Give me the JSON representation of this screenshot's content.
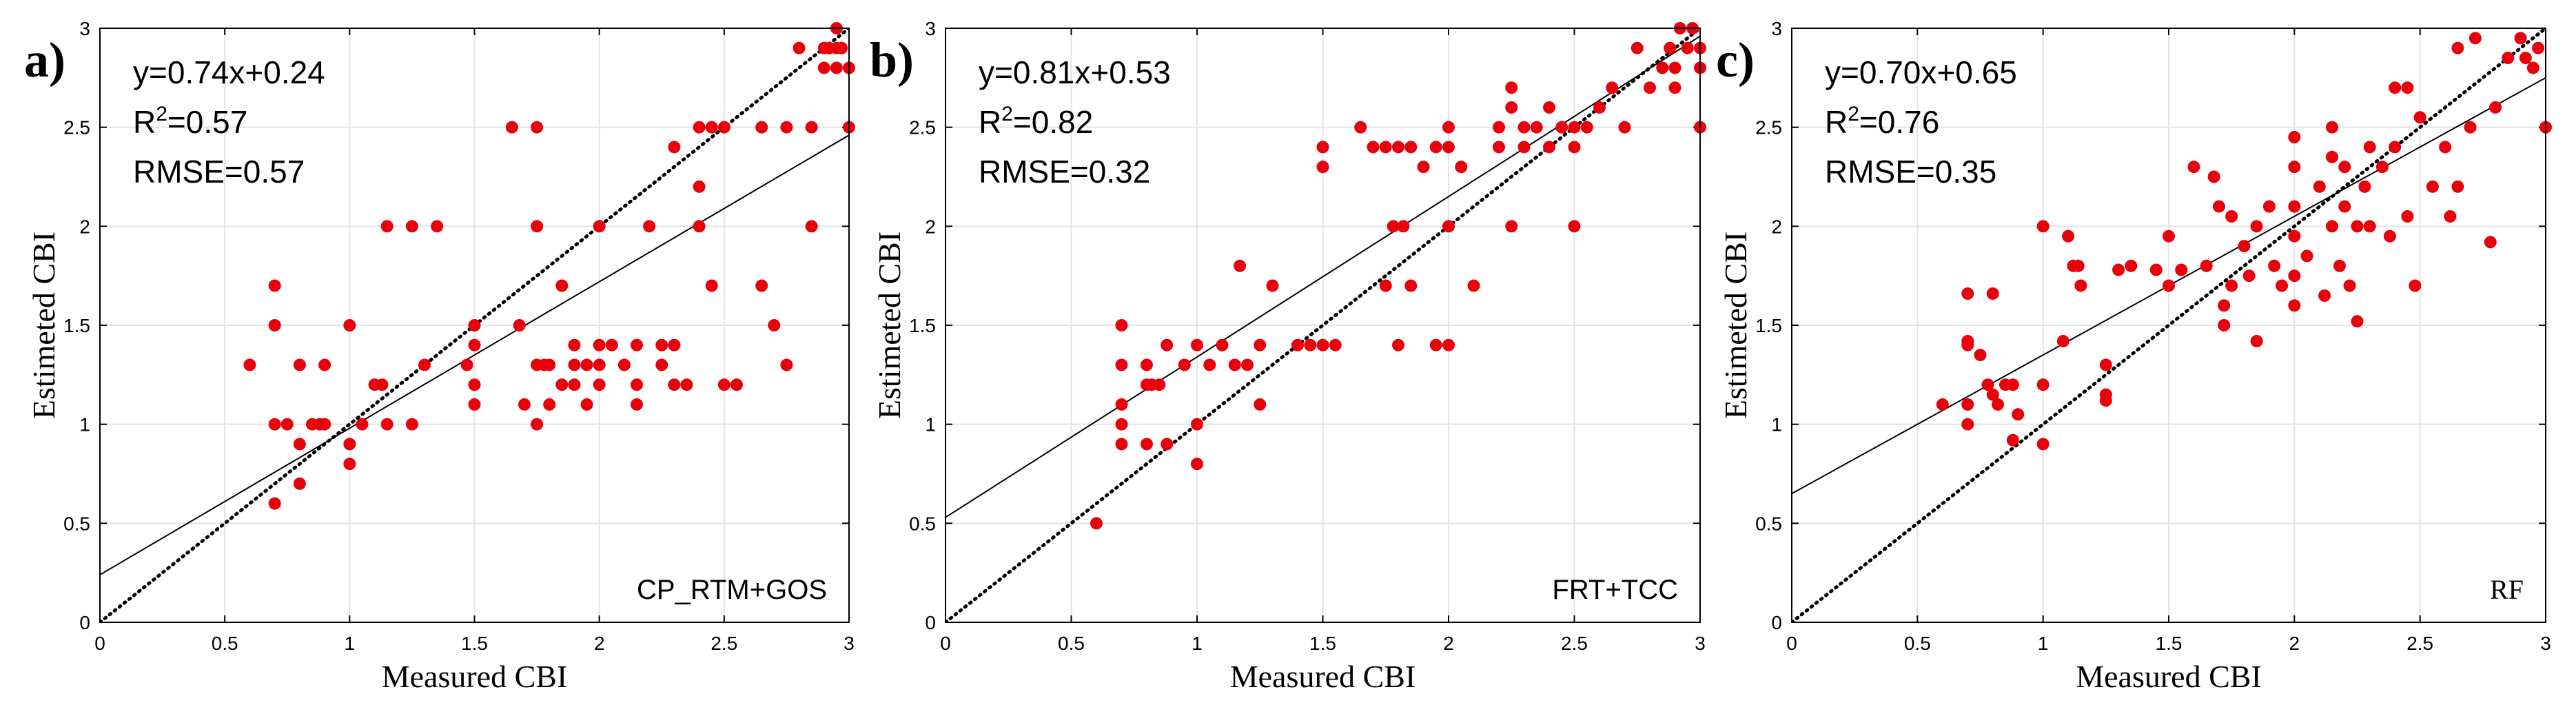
{
  "chart_data": [
    {
      "type": "scatter",
      "panel_label": "a)",
      "xlabel": "Measured CBI",
      "ylabel": "Estimeted CBI",
      "xlim": [
        0,
        3
      ],
      "ylim": [
        0,
        3
      ],
      "xticks": [
        "0",
        "0.5",
        "1",
        "1.5",
        "2",
        "2.5",
        "3"
      ],
      "yticks": [
        "0",
        "0.5",
        "1",
        "1.5",
        "2",
        "2.5",
        "3"
      ],
      "grid": true,
      "equation": "y=0.74x+0.24",
      "r2_text": "R",
      "r2_sup": "2",
      "r2_value": "=0.57",
      "rmse": "RMSE=0.57",
      "method": "CP_RTM+GOS",
      "fit": {
        "slope": 0.74,
        "intercept": 0.24
      },
      "reference_line": "1:1",
      "marker_color": "#e8000b",
      "points": [
        [
          0.6,
          1.3
        ],
        [
          0.7,
          1.7
        ],
        [
          0.7,
          1.5
        ],
        [
          0.7,
          1.0
        ],
        [
          0.7,
          0.6
        ],
        [
          0.75,
          1.0
        ],
        [
          0.8,
          0.9
        ],
        [
          0.8,
          0.7
        ],
        [
          0.8,
          1.3
        ],
        [
          0.85,
          1.0
        ],
        [
          0.88,
          1.0
        ],
        [
          0.9,
          1.3
        ],
        [
          0.9,
          1.0
        ],
        [
          1.0,
          1.5
        ],
        [
          1.0,
          0.9
        ],
        [
          1.0,
          0.8
        ],
        [
          1.05,
          1.0
        ],
        [
          1.1,
          1.2
        ],
        [
          1.13,
          1.2
        ],
        [
          1.15,
          2.0
        ],
        [
          1.15,
          1.0
        ],
        [
          1.25,
          2.0
        ],
        [
          1.25,
          1.0
        ],
        [
          1.3,
          1.3
        ],
        [
          1.35,
          2.0
        ],
        [
          1.47,
          1.3
        ],
        [
          1.5,
          1.5
        ],
        [
          1.5,
          1.4
        ],
        [
          1.5,
          1.2
        ],
        [
          1.5,
          1.1
        ],
        [
          1.65,
          2.5
        ],
        [
          1.68,
          1.5
        ],
        [
          1.7,
          1.1
        ],
        [
          1.75,
          2.5
        ],
        [
          1.75,
          2.0
        ],
        [
          1.75,
          1.3
        ],
        [
          1.75,
          1.0
        ],
        [
          1.78,
          1.3
        ],
        [
          1.8,
          1.3
        ],
        [
          1.8,
          1.1
        ],
        [
          1.85,
          1.7
        ],
        [
          1.85,
          1.2
        ],
        [
          1.9,
          1.4
        ],
        [
          1.9,
          1.3
        ],
        [
          1.9,
          1.2
        ],
        [
          1.95,
          1.3
        ],
        [
          1.95,
          1.1
        ],
        [
          2.0,
          2.0
        ],
        [
          2.0,
          1.4
        ],
        [
          2.0,
          1.3
        ],
        [
          2.0,
          1.2
        ],
        [
          2.05,
          1.4
        ],
        [
          2.1,
          1.3
        ],
        [
          2.15,
          1.4
        ],
        [
          2.15,
          1.2
        ],
        [
          2.15,
          1.1
        ],
        [
          2.2,
          2.0
        ],
        [
          2.25,
          1.4
        ],
        [
          2.25,
          1.3
        ],
        [
          2.3,
          2.4
        ],
        [
          2.3,
          1.4
        ],
        [
          2.3,
          1.2
        ],
        [
          2.35,
          1.2
        ],
        [
          2.4,
          2.5
        ],
        [
          2.4,
          2.2
        ],
        [
          2.4,
          2.0
        ],
        [
          2.45,
          2.5
        ],
        [
          2.45,
          1.7
        ],
        [
          2.5,
          2.5
        ],
        [
          2.5,
          1.2
        ],
        [
          2.55,
          1.2
        ],
        [
          2.65,
          2.5
        ],
        [
          2.65,
          1.7
        ],
        [
          2.7,
          1.5
        ],
        [
          2.75,
          2.5
        ],
        [
          2.75,
          1.3
        ],
        [
          2.8,
          2.9
        ],
        [
          2.85,
          2.5
        ],
        [
          2.85,
          2.0
        ],
        [
          2.9,
          2.9
        ],
        [
          2.9,
          2.8
        ],
        [
          2.92,
          2.9
        ],
        [
          2.95,
          3.0
        ],
        [
          2.95,
          2.9
        ],
        [
          2.95,
          2.8
        ],
        [
          2.97,
          2.9
        ],
        [
          3.0,
          2.8
        ],
        [
          3.0,
          2.5
        ]
      ]
    },
    {
      "type": "scatter",
      "panel_label": "b)",
      "xlabel": "Measured CBI",
      "ylabel": "Estimeted CBI",
      "xlim": [
        0,
        3
      ],
      "ylim": [
        0,
        3
      ],
      "xticks": [
        "0",
        "0.5",
        "1",
        "1.5",
        "2",
        "2.5",
        "3"
      ],
      "yticks": [
        "0",
        "0.5",
        "1",
        "1.5",
        "2",
        "2.5",
        "3"
      ],
      "grid": true,
      "equation": "y=0.81x+0.53",
      "r2_text": "R",
      "r2_sup": "2",
      "r2_value": "=0.82",
      "rmse": "RMSE=0.32",
      "method": "FRT+TCC",
      "fit": {
        "slope": 0.81,
        "intercept": 0.53
      },
      "reference_line": "1:1",
      "marker_color": "#e8000b",
      "points": [
        [
          0.6,
          0.5
        ],
        [
          0.7,
          1.5
        ],
        [
          0.7,
          1.3
        ],
        [
          0.7,
          1.1
        ],
        [
          0.7,
          1.0
        ],
        [
          0.7,
          0.9
        ],
        [
          0.8,
          1.3
        ],
        [
          0.8,
          1.2
        ],
        [
          0.8,
          0.9
        ],
        [
          0.82,
          1.2
        ],
        [
          0.85,
          1.2
        ],
        [
          0.88,
          1.4
        ],
        [
          0.88,
          0.9
        ],
        [
          0.95,
          1.3
        ],
        [
          1.0,
          1.4
        ],
        [
          1.0,
          1.0
        ],
        [
          1.0,
          0.8
        ],
        [
          1.05,
          1.3
        ],
        [
          1.1,
          1.4
        ],
        [
          1.15,
          1.3
        ],
        [
          1.17,
          1.8
        ],
        [
          1.2,
          1.3
        ],
        [
          1.25,
          1.4
        ],
        [
          1.25,
          1.1
        ],
        [
          1.3,
          1.7
        ],
        [
          1.4,
          1.4
        ],
        [
          1.45,
          1.4
        ],
        [
          1.5,
          1.4
        ],
        [
          1.5,
          2.4
        ],
        [
          1.5,
          2.3
        ],
        [
          1.55,
          1.4
        ],
        [
          1.65,
          2.5
        ],
        [
          1.7,
          2.4
        ],
        [
          1.75,
          2.4
        ],
        [
          1.75,
          1.7
        ],
        [
          1.78,
          2.0
        ],
        [
          1.8,
          2.4
        ],
        [
          1.8,
          1.4
        ],
        [
          1.82,
          2.0
        ],
        [
          1.85,
          2.4
        ],
        [
          1.85,
          1.7
        ],
        [
          1.9,
          2.3
        ],
        [
          1.95,
          2.4
        ],
        [
          1.95,
          1.4
        ],
        [
          2.0,
          2.5
        ],
        [
          2.0,
          2.4
        ],
        [
          2.0,
          2.0
        ],
        [
          2.0,
          1.4
        ],
        [
          2.05,
          2.3
        ],
        [
          2.1,
          1.7
        ],
        [
          2.2,
          2.5
        ],
        [
          2.2,
          2.4
        ],
        [
          2.25,
          2.7
        ],
        [
          2.25,
          2.6
        ],
        [
          2.25,
          2.0
        ],
        [
          2.3,
          2.5
        ],
        [
          2.3,
          2.4
        ],
        [
          2.35,
          2.5
        ],
        [
          2.4,
          2.6
        ],
        [
          2.4,
          2.4
        ],
        [
          2.45,
          2.5
        ],
        [
          2.5,
          2.5
        ],
        [
          2.5,
          2.4
        ],
        [
          2.5,
          2.0
        ],
        [
          2.55,
          2.5
        ],
        [
          2.6,
          2.6
        ],
        [
          2.65,
          2.7
        ],
        [
          2.7,
          2.5
        ],
        [
          2.75,
          2.9
        ],
        [
          2.8,
          2.7
        ],
        [
          2.85,
          2.8
        ],
        [
          2.88,
          2.9
        ],
        [
          2.9,
          2.8
        ],
        [
          2.9,
          2.7
        ],
        [
          2.92,
          3.0
        ],
        [
          2.95,
          2.9
        ],
        [
          2.97,
          3.0
        ],
        [
          3.0,
          2.9
        ],
        [
          3.0,
          2.8
        ],
        [
          3.0,
          2.5
        ]
      ]
    },
    {
      "type": "scatter",
      "panel_label": "c)",
      "xlabel": "Measured CBI",
      "ylabel": "Estimeted CBI",
      "xlim": [
        0,
        3
      ],
      "ylim": [
        0,
        3
      ],
      "xticks": [
        "0",
        "0.5",
        "1",
        "1.5",
        "2",
        "2.5",
        "3"
      ],
      "yticks": [
        "0",
        "0.5",
        "1",
        "1.5",
        "2",
        "2.5",
        "3"
      ],
      "grid": true,
      "equation": "y=0.70x+0.65",
      "r2_text": "R",
      "r2_sup": "2",
      "r2_value": "=0.76",
      "rmse": "RMSE=0.35",
      "method": "RF",
      "fit": {
        "slope": 0.7,
        "intercept": 0.65
      },
      "reference_line": "1:1",
      "marker_color": "#e8000b",
      "points": [
        [
          0.6,
          1.1
        ],
        [
          0.7,
          1.66
        ],
        [
          0.7,
          1.42
        ],
        [
          0.7,
          1.4
        ],
        [
          0.7,
          1.1
        ],
        [
          0.7,
          1.0
        ],
        [
          0.75,
          1.35
        ],
        [
          0.78,
          1.2
        ],
        [
          0.8,
          1.66
        ],
        [
          0.8,
          1.15
        ],
        [
          0.82,
          1.1
        ],
        [
          0.85,
          1.2
        ],
        [
          0.88,
          1.2
        ],
        [
          0.88,
          0.92
        ],
        [
          0.9,
          1.05
        ],
        [
          1.0,
          2.0
        ],
        [
          1.0,
          1.2
        ],
        [
          1.0,
          0.9
        ],
        [
          1.08,
          1.42
        ],
        [
          1.1,
          1.95
        ],
        [
          1.12,
          1.8
        ],
        [
          1.14,
          1.8
        ],
        [
          1.15,
          1.7
        ],
        [
          1.25,
          1.3
        ],
        [
          1.25,
          1.15
        ],
        [
          1.25,
          1.12
        ],
        [
          1.3,
          1.78
        ],
        [
          1.35,
          1.8
        ],
        [
          1.45,
          1.78
        ],
        [
          1.5,
          1.95
        ],
        [
          1.5,
          1.7
        ],
        [
          1.55,
          1.78
        ],
        [
          1.6,
          2.3
        ],
        [
          1.65,
          1.8
        ],
        [
          1.68,
          2.25
        ],
        [
          1.7,
          2.1
        ],
        [
          1.72,
          1.6
        ],
        [
          1.72,
          1.5
        ],
        [
          1.75,
          2.05
        ],
        [
          1.75,
          1.7
        ],
        [
          1.8,
          1.9
        ],
        [
          1.82,
          1.75
        ],
        [
          1.85,
          2.0
        ],
        [
          1.85,
          1.42
        ],
        [
          1.9,
          2.1
        ],
        [
          1.92,
          1.8
        ],
        [
          1.95,
          1.7
        ],
        [
          2.0,
          2.45
        ],
        [
          2.0,
          2.3
        ],
        [
          2.0,
          2.1
        ],
        [
          2.0,
          1.95
        ],
        [
          2.0,
          1.75
        ],
        [
          2.0,
          1.6
        ],
        [
          2.05,
          1.85
        ],
        [
          2.1,
          2.2
        ],
        [
          2.12,
          1.65
        ],
        [
          2.15,
          2.5
        ],
        [
          2.15,
          2.35
        ],
        [
          2.15,
          2.0
        ],
        [
          2.18,
          1.8
        ],
        [
          2.2,
          2.3
        ],
        [
          2.2,
          2.1
        ],
        [
          2.22,
          1.7
        ],
        [
          2.25,
          2.0
        ],
        [
          2.25,
          1.52
        ],
        [
          2.28,
          2.2
        ],
        [
          2.3,
          2.4
        ],
        [
          2.3,
          2.0
        ],
        [
          2.35,
          2.3
        ],
        [
          2.38,
          1.95
        ],
        [
          2.4,
          2.7
        ],
        [
          2.4,
          2.4
        ],
        [
          2.45,
          2.7
        ],
        [
          2.45,
          2.05
        ],
        [
          2.48,
          1.7
        ],
        [
          2.5,
          2.55
        ],
        [
          2.55,
          2.2
        ],
        [
          2.6,
          2.4
        ],
        [
          2.62,
          2.05
        ],
        [
          2.65,
          2.9
        ],
        [
          2.65,
          2.2
        ],
        [
          2.7,
          2.5
        ],
        [
          2.72,
          2.95
        ],
        [
          2.78,
          1.92
        ],
        [
          2.8,
          2.6
        ],
        [
          2.85,
          2.85
        ],
        [
          2.9,
          2.95
        ],
        [
          2.92,
          2.85
        ],
        [
          2.95,
          2.8
        ],
        [
          2.97,
          2.9
        ],
        [
          3.0,
          2.5
        ]
      ]
    }
  ]
}
